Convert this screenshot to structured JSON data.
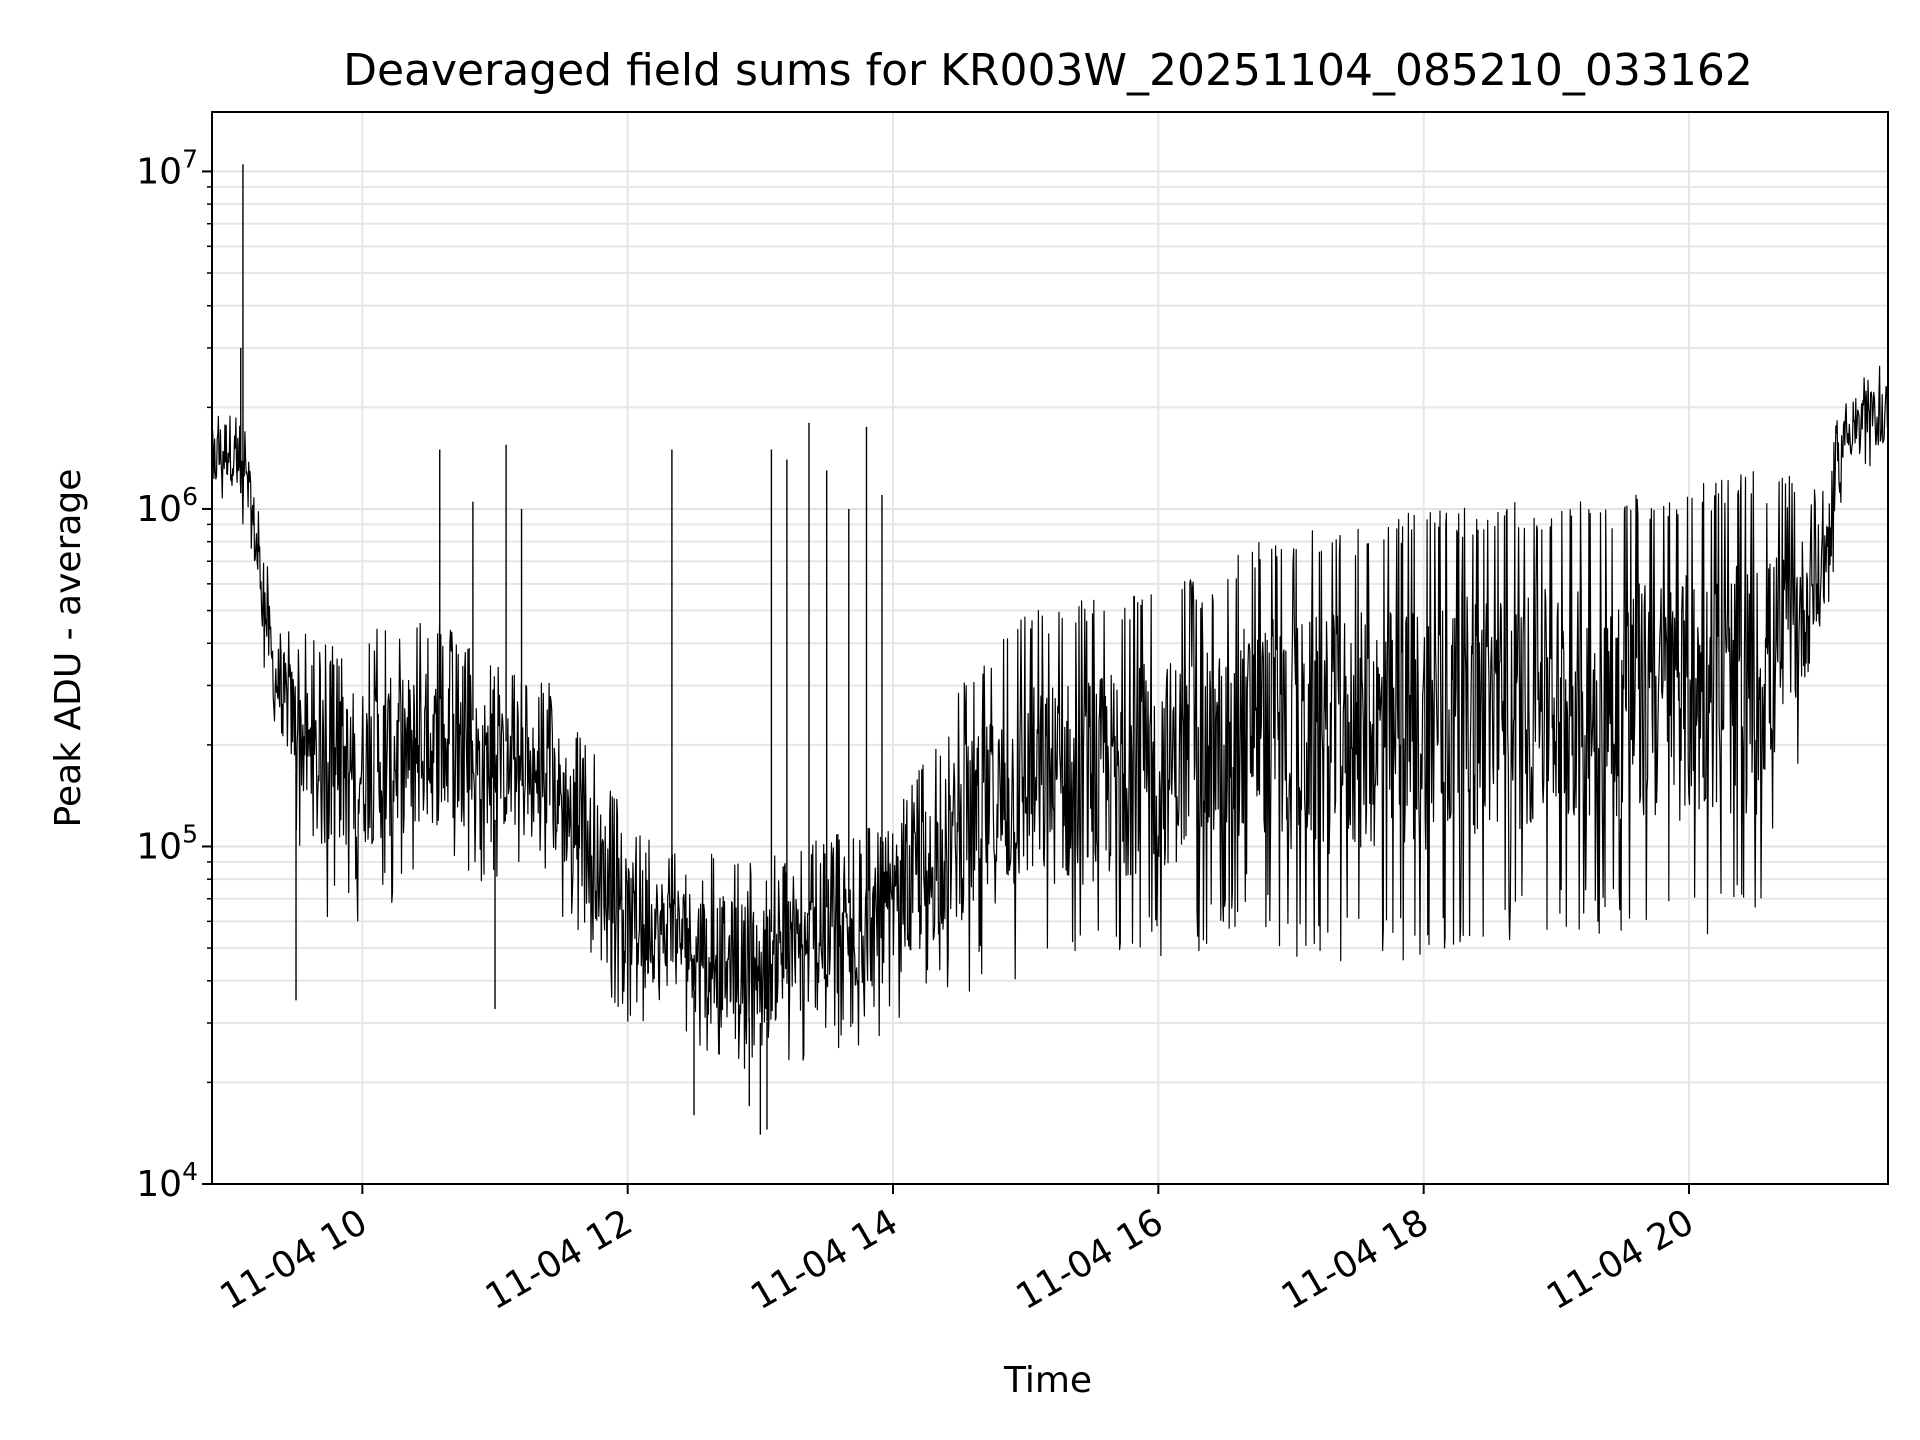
{
  "chart_data": {
    "type": "line",
    "title": "Deaveraged field sums for KR003W_20251104_085210_033162",
    "xlabel": "Time",
    "ylabel": "Peak ADU - average",
    "y_scale": "log",
    "ylim": [
      10000,
      15000000
    ],
    "xlim": [
      "2025-11-04 08:52",
      "2025-11-04 21:30"
    ],
    "x_ticks": [
      {
        "at": "2025-11-04 10:00",
        "label": "11-04 10"
      },
      {
        "at": "2025-11-04 12:00",
        "label": "11-04 12"
      },
      {
        "at": "2025-11-04 14:00",
        "label": "11-04 14"
      },
      {
        "at": "2025-11-04 16:00",
        "label": "11-04 16"
      },
      {
        "at": "2025-11-04 18:00",
        "label": "11-04 18"
      },
      {
        "at": "2025-11-04 20:00",
        "label": "11-04 20"
      }
    ],
    "y_ticks": [
      {
        "value": 10000,
        "base": "10",
        "exp": "4"
      },
      {
        "value": 100000,
        "base": "10",
        "exp": "5"
      },
      {
        "value": 1000000,
        "base": "10",
        "exp": "6"
      },
      {
        "value": 10000000,
        "base": "10",
        "exp": "7"
      }
    ],
    "grid": true,
    "series": [
      {
        "color": "#000000",
        "envelope": {
          "x": [
            "2025-11-04 08:52",
            "2025-11-04 09:00",
            "2025-11-04 09:10",
            "2025-11-04 09:20",
            "2025-11-04 09:40",
            "2025-11-04 10:00",
            "2025-11-04 10:30",
            "2025-11-04 11:00",
            "2025-11-04 11:30",
            "2025-11-04 12:00",
            "2025-11-04 12:30",
            "2025-11-04 13:00",
            "2025-11-04 13:30",
            "2025-11-04 14:00",
            "2025-11-04 14:30",
            "2025-11-04 15:00",
            "2025-11-04 15:30",
            "2025-11-04 16:00",
            "2025-11-04 16:30",
            "2025-11-04 16:40",
            "2025-11-04 17:00",
            "2025-11-04 17:30",
            "2025-11-04 18:00",
            "2025-11-04 18:30",
            "2025-11-04 19:00",
            "2025-11-04 19:30",
            "2025-11-04 20:00",
            "2025-11-04 20:30",
            "2025-11-04 21:00",
            "2025-11-04 21:10",
            "2025-11-04 21:30"
          ],
          "high": [
            2000000,
            2300000,
            1500000,
            500000,
            400000,
            450000,
            500000,
            350000,
            300000,
            120000,
            100000,
            90000,
            110000,
            120000,
            300000,
            500000,
            550000,
            600000,
            650000,
            800000,
            850000,
            900000,
            1000000,
            1050000,
            1050000,
            1100000,
            1200000,
            1300000,
            1200000,
            2200000,
            2800000
          ],
          "low": [
            900000,
            1000000,
            600000,
            200000,
            60000,
            60000,
            70000,
            80000,
            60000,
            30000,
            25000,
            20000,
            22000,
            28000,
            35000,
            40000,
            40000,
            45000,
            50000,
            60000,
            45000,
            45000,
            45000,
            50000,
            55000,
            55000,
            55000,
            55000,
            300000,
            1200000,
            1300000
          ]
        },
        "spikes": [
          {
            "x": "2025-11-04 09:06",
            "y": 10500000
          },
          {
            "x": "2025-11-04 09:05",
            "y": 3000000
          },
          {
            "x": "2025-11-04 10:35",
            "y": 1500000
          },
          {
            "x": "2025-11-04 10:50",
            "y": 1050000
          },
          {
            "x": "2025-11-04 11:05",
            "y": 1550000
          },
          {
            "x": "2025-11-04 11:12",
            "y": 1000000
          },
          {
            "x": "2025-11-04 12:20",
            "y": 1500000
          },
          {
            "x": "2025-11-04 13:05",
            "y": 1500000
          },
          {
            "x": "2025-11-04 13:12",
            "y": 1400000
          },
          {
            "x": "2025-11-04 13:22",
            "y": 1800000
          },
          {
            "x": "2025-11-04 13:30",
            "y": 1300000
          },
          {
            "x": "2025-11-04 13:40",
            "y": 1000000
          },
          {
            "x": "2025-11-04 13:48",
            "y": 1750000
          },
          {
            "x": "2025-11-04 13:55",
            "y": 1100000
          }
        ],
        "dips": [
          {
            "x": "2025-11-04 12:30",
            "y": 16000
          },
          {
            "x": "2025-11-04 13:00",
            "y": 14000
          },
          {
            "x": "2025-11-04 13:03",
            "y": 14500
          },
          {
            "x": "2025-11-04 12:55",
            "y": 17000
          },
          {
            "x": "2025-11-04 09:30",
            "y": 35000
          },
          {
            "x": "2025-11-04 11:00",
            "y": 33000
          }
        ]
      }
    ]
  }
}
